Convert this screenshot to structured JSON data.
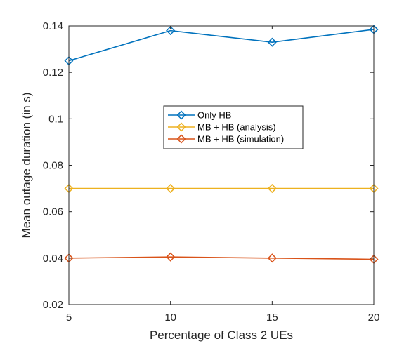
{
  "chart_data": {
    "type": "line",
    "xlabel": "Percentage of Class 2 UEs",
    "ylabel": "Mean outage duration (in s)",
    "x": [
      5,
      10,
      15,
      20
    ],
    "xlim": [
      5,
      20
    ],
    "ylim": [
      0.02,
      0.14
    ],
    "xticks": [
      5,
      10,
      15,
      20
    ],
    "xtick_labels": [
      "5",
      "10",
      "15",
      "20"
    ],
    "yticks": [
      0.02,
      0.04,
      0.06,
      0.08,
      0.1,
      0.12,
      0.14
    ],
    "ytick_labels": [
      "0.02",
      "0.04",
      "0.06",
      "0.08",
      "0.1",
      "0.12",
      "0.14"
    ],
    "grid": false,
    "legend_position": "center",
    "marker": "diamond",
    "series": [
      {
        "name": "Only HB",
        "color": "#0072BD",
        "values": [
          0.125,
          0.138,
          0.133,
          0.1385
        ]
      },
      {
        "name": "MB + HB (analysis)",
        "color": "#EDB120",
        "values": [
          0.07,
          0.07,
          0.07,
          0.07
        ]
      },
      {
        "name": "MB + HB (simulation)",
        "color": "#D95319",
        "values": [
          0.04,
          0.0405,
          0.04,
          0.0395
        ]
      }
    ]
  }
}
